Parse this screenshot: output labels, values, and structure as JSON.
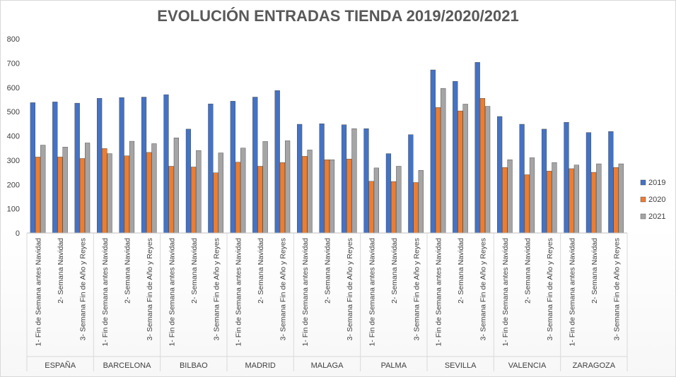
{
  "chart_data": {
    "type": "bar",
    "title": "EVOLUCIÓN ENTRADAS TIENDA 2019/2020/2021",
    "xlabel": "",
    "ylabel": "",
    "ylim": [
      0,
      800
    ],
    "yticks": [
      0,
      100,
      200,
      300,
      400,
      500,
      600,
      700,
      800
    ],
    "grid": false,
    "legend_position": "right",
    "colors": [
      "#4472c4",
      "#ed7d31",
      "#a5a5a5"
    ],
    "groups": [
      "ESPAÑA",
      "BARCELONA",
      "BILBAO",
      "MADRID",
      "MALAGA",
      "PALMA",
      "SEVILLA",
      "VALENCIA",
      "ZARAGOZA"
    ],
    "subcategories": [
      "1- Fin de Semana antes Navidad",
      "2- Semana Navidad",
      "3- Semana Fin de Año y Reyes"
    ],
    "series": [
      {
        "name": "2019",
        "values": [
          537,
          540,
          535,
          555,
          558,
          560,
          570,
          428,
          532,
          543,
          560,
          587,
          448,
          450,
          446,
          430,
          327,
          405,
          672,
          625,
          703,
          480,
          448,
          428,
          456,
          414,
          418
        ]
      },
      {
        "name": "2020",
        "values": [
          313,
          313,
          307,
          348,
          318,
          332,
          275,
          272,
          248,
          292,
          275,
          290,
          316,
          302,
          305,
          213,
          212,
          208,
          517,
          503,
          555,
          270,
          240,
          255,
          265,
          250,
          270
        ]
      },
      {
        "name": "2021",
        "values": [
          362,
          354,
          371,
          327,
          378,
          368,
          392,
          340,
          330,
          350,
          377,
          380,
          342,
          302,
          430,
          268,
          275,
          258,
          596,
          531,
          522,
          302,
          310,
          290,
          280,
          285,
          285
        ]
      }
    ]
  }
}
